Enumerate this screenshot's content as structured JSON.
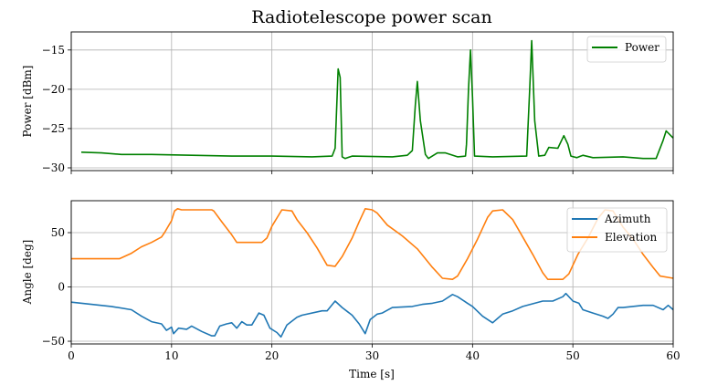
{
  "title": "Radiotelescope power scan",
  "colors": {
    "power": "#008000",
    "azimuth": "#1f77b4",
    "elevation": "#ff7f0e",
    "grid": "#b0b0b0"
  },
  "chart_data": [
    {
      "type": "line",
      "ylabel": "Power [dBm]",
      "xlim": [
        0,
        60
      ],
      "ylim": [
        -30.35,
        -12.7
      ],
      "yticks": [
        -15,
        -20,
        -25,
        -30
      ],
      "xticks": [
        0,
        10,
        20,
        30,
        40,
        50,
        60
      ],
      "grid": true,
      "legend": "top-right",
      "series": [
        {
          "name": "Power",
          "color": "#008000",
          "x": [
            1,
            3,
            5,
            8,
            12,
            16,
            20,
            24,
            26,
            26.3,
            26.6,
            26.8,
            27.0,
            27.3,
            28,
            32,
            33.5,
            34,
            34.3,
            34.5,
            34.8,
            35.3,
            35.6,
            36.5,
            37.3,
            38.5,
            39.3,
            39.4,
            39.6,
            39.8,
            40.0,
            40.2,
            42,
            45.4,
            45.7,
            45.9,
            46.2,
            46.6,
            47.2,
            47.6,
            48.5,
            49.1,
            49.5,
            49.8,
            50.4,
            51,
            52,
            55,
            57,
            58.3,
            59,
            59.3,
            60
          ],
          "y": [
            -28.0,
            -28.1,
            -28.3,
            -28.3,
            -28.4,
            -28.5,
            -28.5,
            -28.6,
            -28.5,
            -27.5,
            -17.4,
            -18.5,
            -28.6,
            -28.8,
            -28.5,
            -28.6,
            -28.4,
            -27.8,
            -22,
            -19.0,
            -24,
            -28.3,
            -28.8,
            -28.1,
            -28.1,
            -28.6,
            -28.5,
            -27,
            -20,
            -15.0,
            -21,
            -28.5,
            -28.6,
            -28.5,
            -20,
            -13.8,
            -24,
            -28.5,
            -28.4,
            -27.4,
            -27.5,
            -25.9,
            -27,
            -28.5,
            -28.7,
            -28.4,
            -28.7,
            -28.6,
            -28.8,
            -28.8,
            -26.5,
            -25.3,
            -26.2
          ]
        }
      ]
    },
    {
      "type": "line",
      "xlabel": "Time [s]",
      "ylabel": "Angle [deg]",
      "xlim": [
        0,
        60
      ],
      "ylim": [
        -52.5,
        79.4
      ],
      "yticks": [
        50,
        0,
        -50
      ],
      "xticks": [
        0,
        10,
        20,
        30,
        40,
        50,
        60
      ],
      "grid": true,
      "legend": "top-right",
      "series": [
        {
          "name": "Azimuth",
          "color": "#1f77b4",
          "x": [
            0,
            2,
            4,
            6,
            7,
            8,
            9,
            9.5,
            10,
            10.2,
            10.7,
            11.5,
            12,
            13,
            14,
            14.3,
            14.8,
            15.5,
            16,
            16.5,
            17,
            17.5,
            18,
            18.7,
            19.2,
            19.8,
            20.5,
            20.9,
            21.5,
            22.5,
            23,
            25,
            25.5,
            26.3,
            27,
            28,
            28.7,
            29.3,
            29.8,
            30.5,
            31,
            32,
            34,
            35,
            36,
            37,
            38,
            38.5,
            39.5,
            40,
            41,
            42,
            42.5,
            43,
            44,
            45,
            47,
            48,
            49,
            49.3,
            50,
            50.6,
            51,
            52,
            53,
            53.5,
            54,
            54.5,
            55,
            57,
            58,
            59,
            59.5,
            60
          ],
          "y": [
            -14,
            -16,
            -18,
            -21,
            -27,
            -32,
            -34,
            -40,
            -37,
            -43,
            -38,
            -39,
            -36,
            -41,
            -45,
            -45,
            -36,
            -34,
            -33,
            -38,
            -32,
            -35,
            -35,
            -24,
            -26,
            -38,
            -42,
            -46,
            -35,
            -28,
            -26,
            -22,
            -22,
            -13,
            -19,
            -26,
            -34,
            -43,
            -30,
            -25,
            -24,
            -19,
            -18,
            -16,
            -15,
            -13,
            -7,
            -9,
            -15,
            -18,
            -27,
            -33,
            -29,
            -25,
            -22,
            -18,
            -13,
            -13,
            -9,
            -6,
            -13,
            -15,
            -21,
            -24,
            -27,
            -29,
            -25,
            -19,
            -19,
            -17,
            -17,
            -21,
            -17,
            -21
          ]
        },
        {
          "name": "Elevation",
          "color": "#ff7f0e",
          "x": [
            0,
            4.8,
            6,
            7,
            8,
            9,
            9.3,
            10,
            10.3,
            10.6,
            11,
            14,
            14.2,
            15,
            16,
            16.5,
            19,
            19.5,
            20,
            21,
            22,
            22.5,
            23.5,
            24.5,
            25.5,
            26.3,
            27,
            28,
            28.7,
            29.3,
            30,
            30.5,
            31.5,
            33,
            34.5,
            36,
            37,
            38,
            38.5,
            39.5,
            40.5,
            41.5,
            42,
            43,
            44,
            45,
            46,
            47,
            47.5,
            49,
            49.6,
            50.5,
            51.5,
            52.5,
            53.2,
            54,
            55,
            56,
            57,
            58,
            58.7,
            60
          ],
          "y": [
            26,
            26,
            31,
            37,
            41,
            46,
            50,
            61,
            70,
            72,
            71,
            71,
            70,
            60,
            48,
            41,
            41,
            45,
            56,
            71,
            70,
            62,
            50,
            36,
            20,
            19,
            28,
            45,
            60,
            72,
            71,
            68,
            57,
            47,
            35,
            18,
            8,
            7,
            10,
            26,
            44,
            64,
            70,
            71,
            62,
            46,
            30,
            13,
            7,
            7,
            12,
            30,
            45,
            63,
            71,
            70,
            55,
            44,
            30,
            18,
            10,
            8
          ]
        }
      ]
    }
  ]
}
